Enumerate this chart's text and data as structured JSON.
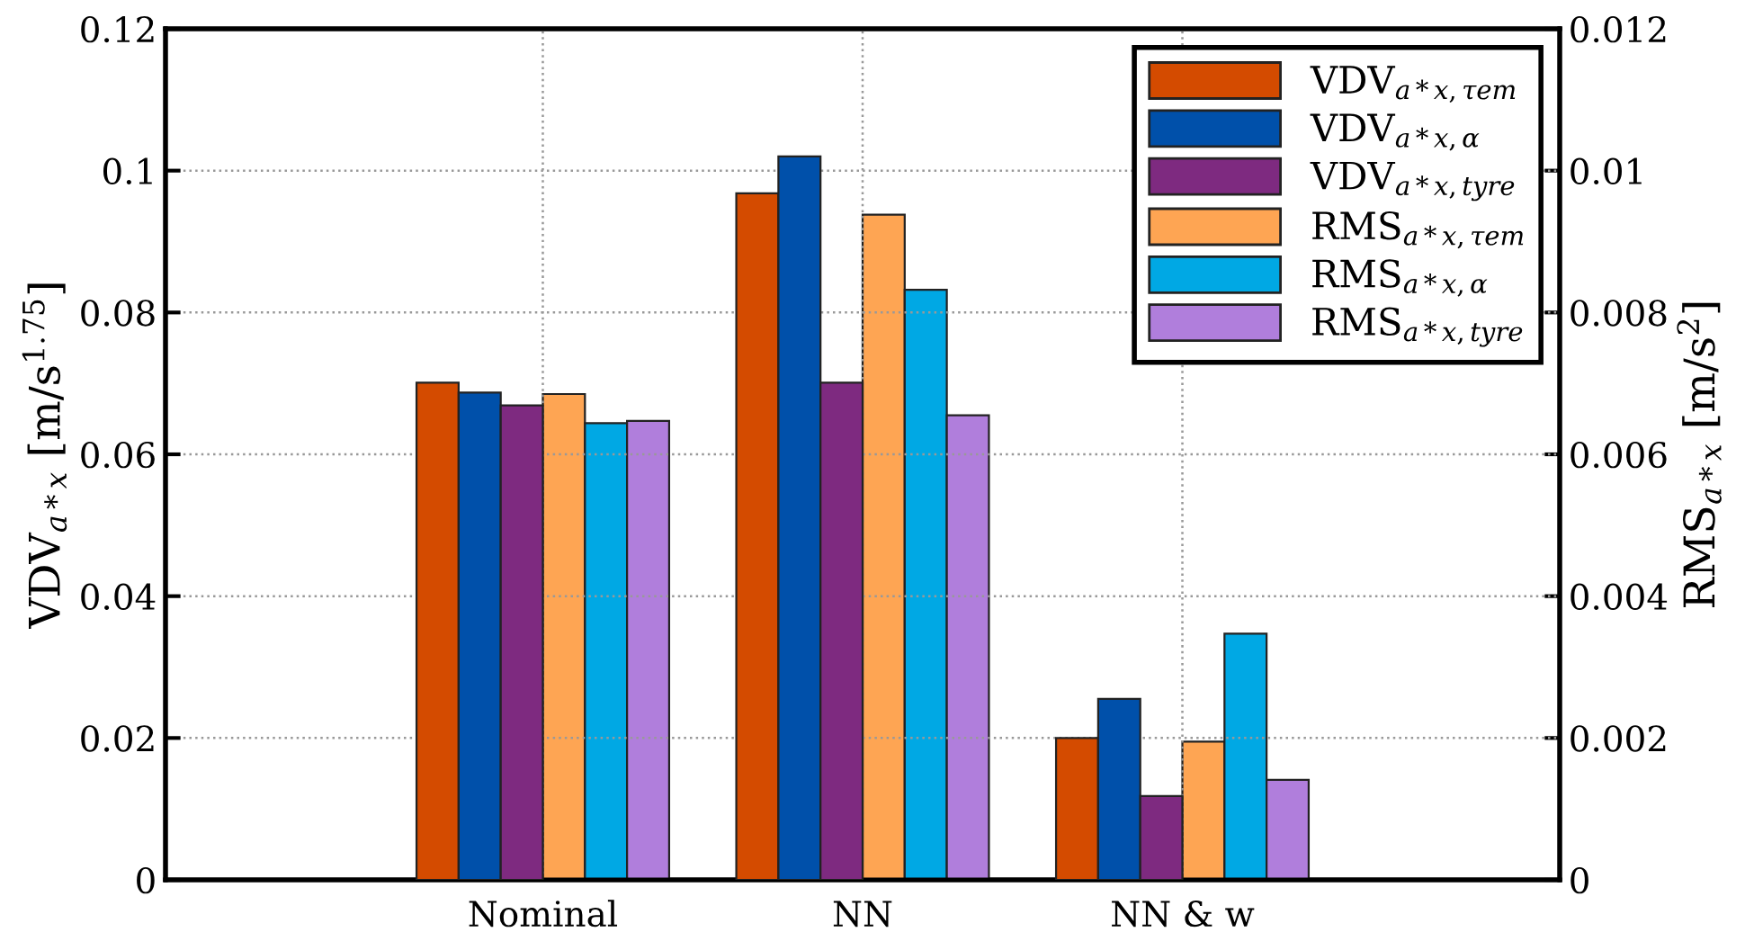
{
  "chart_data": {
    "type": "bar",
    "categories": [
      "Nominal",
      "NN",
      "NN & w"
    ],
    "ylabel": "VDV$_{a*x}$ [m/s$^{1.75}$]",
    "y2label": "RMS$_{a*x}$ [m/s$^{2}$]",
    "ylim": [
      0,
      0.12
    ],
    "yticks": [
      0,
      0.02,
      0.04,
      0.06,
      0.08,
      0.1,
      0.12
    ],
    "y2lim": [
      0,
      0.012
    ],
    "y2ticks": [
      0,
      0.002,
      0.004,
      0.006,
      0.008,
      0.01,
      0.012
    ],
    "grid": true,
    "legend": "top right",
    "series": [
      {
        "name": "VDV$_{a*x,τem}$",
        "color": "#d44b00",
        "values": [
          0.0701,
          0.0968,
          0.02
        ]
      },
      {
        "name": "VDV$_{a*x,α}$",
        "color": "#0050aa",
        "values": [
          0.0687,
          0.102,
          0.0255
        ]
      },
      {
        "name": "VDV$_{a*x,tyre}$",
        "color": "#7e2a80",
        "values": [
          0.0669,
          0.0701,
          0.0118
        ]
      },
      {
        "name": "RMS$_{a*x,τem}$",
        "color": "#fea553",
        "values": [
          0.00685,
          0.00938,
          0.00195
        ],
        "axis": "y2"
      },
      {
        "name": "RMS$_{a*x,α}$",
        "color": "#00a8e4",
        "values": [
          0.00644,
          0.00832,
          0.00347
        ],
        "axis": "y2"
      },
      {
        "name": "RMS$_{a*x,tyre}$",
        "color": "#b07edc",
        "values": [
          0.00647,
          0.00655,
          0.00141
        ],
        "axis": "y2"
      }
    ]
  }
}
